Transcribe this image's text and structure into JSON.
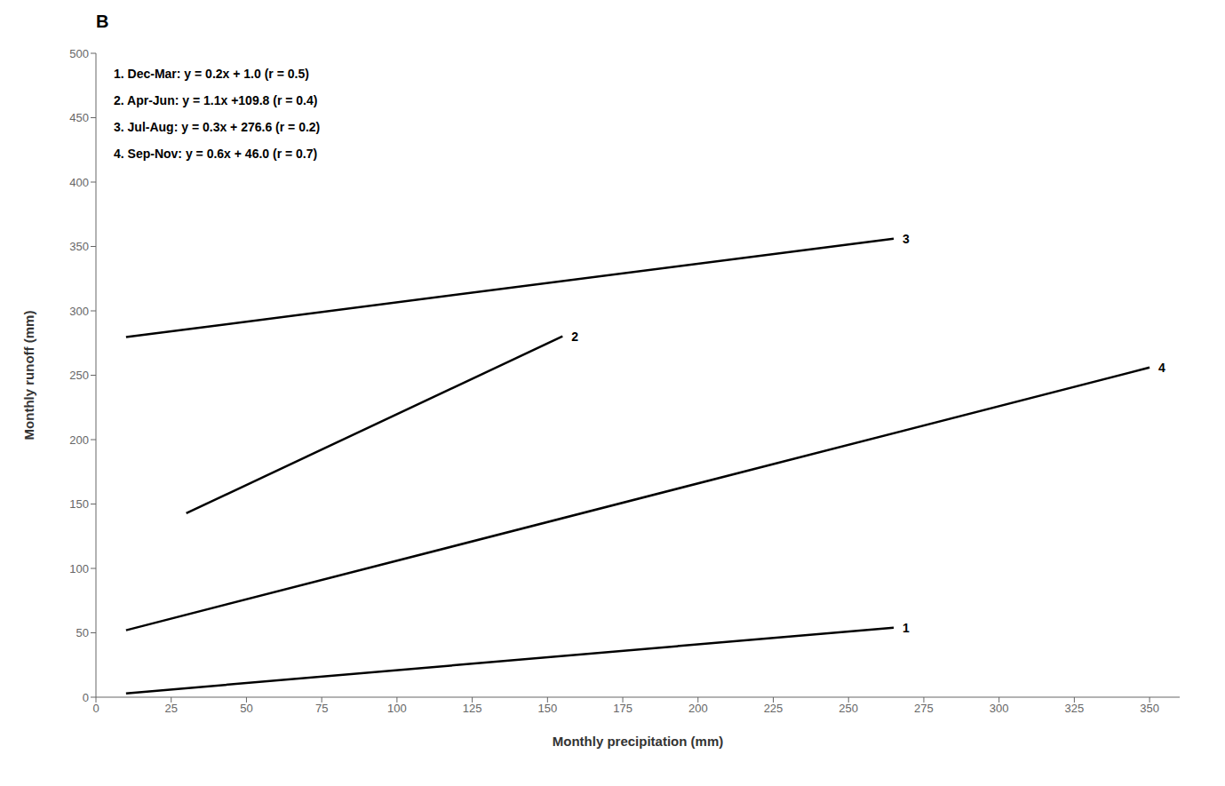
{
  "chart_data": {
    "type": "line",
    "title": "B",
    "xlabel": "Monthly precipitation (mm)",
    "ylabel": "Monthly runoff (mm)",
    "xlim": [
      0,
      360
    ],
    "ylim": [
      0,
      500
    ],
    "xticks": [
      0,
      25,
      50,
      75,
      100,
      125,
      150,
      175,
      200,
      225,
      250,
      275,
      300,
      325,
      350
    ],
    "yticks": [
      0,
      50,
      100,
      150,
      200,
      250,
      300,
      350,
      400,
      450,
      500
    ],
    "color": "#000000",
    "grid": false,
    "series": [
      {
        "name": "1",
        "x": [
          10,
          265
        ],
        "values": [
          3.0,
          54.0
        ]
      },
      {
        "name": "2",
        "x": [
          30,
          155
        ],
        "values": [
          142.8,
          280.3
        ]
      },
      {
        "name": "3",
        "x": [
          10,
          265
        ],
        "values": [
          279.6,
          356.1
        ]
      },
      {
        "name": "4",
        "x": [
          10,
          350
        ],
        "values": [
          52.0,
          256.0
        ]
      }
    ],
    "annotations": [
      "1. Dec-Mar: y = 0.2x + 1.0 (r = 0.5)",
      "2. Apr-Jun: y = 1.1x +109.8 (r = 0.4)",
      "3. Jul-Aug: y = 0.3x + 276.6 (r = 0.2)",
      "4. Sep-Nov: y = 0.6x + 46.0 (r = 0.7)"
    ]
  }
}
